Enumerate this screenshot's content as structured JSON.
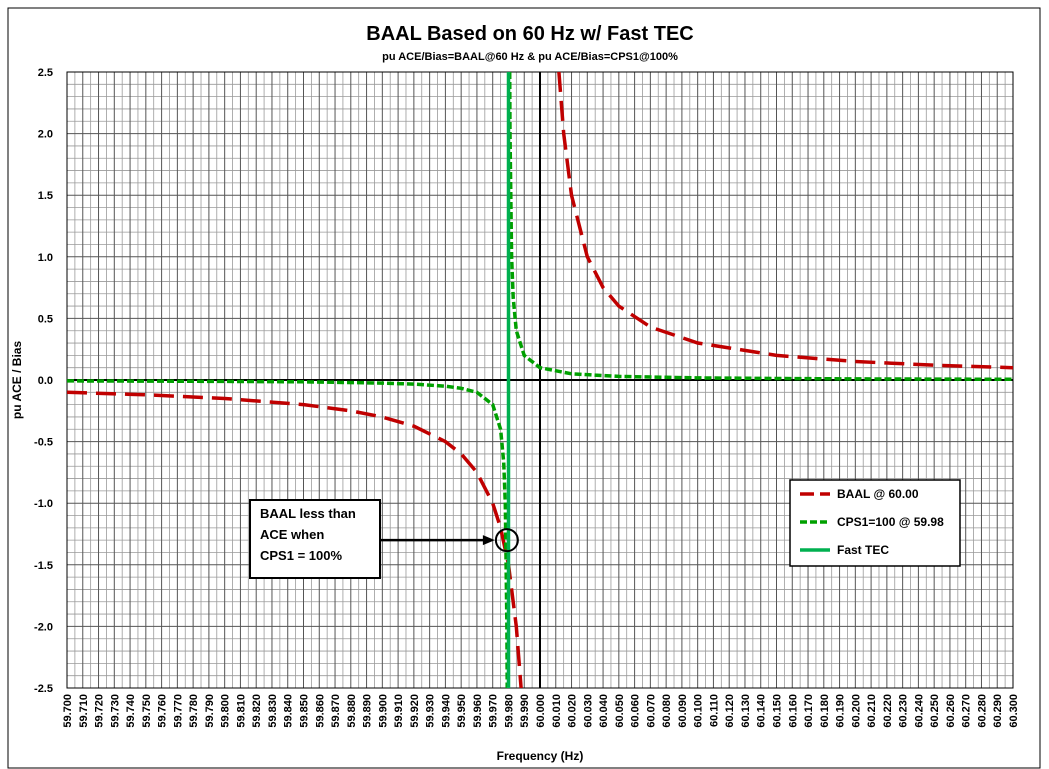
{
  "chart_data": {
    "type": "line",
    "title": "BAAL Based on 60 Hz w/ Fast TEC",
    "subtitle": "pu ACE/Bias=BAAL@60 Hz & pu ACE/Bias=CPS1@100%",
    "xlabel": "Frequency (Hz)",
    "ylabel": "pu ACE / Bias",
    "xlim": [
      59.7,
      60.3
    ],
    "ylim": [
      -2.5,
      2.5
    ],
    "xticks": [
      {
        "value": 59.7,
        "label": "59.700"
      },
      {
        "value": 59.71,
        "label": "59.710"
      },
      {
        "value": 59.72,
        "label": "59.720"
      },
      {
        "value": 59.73,
        "label": "59.730"
      },
      {
        "value": 59.74,
        "label": "59.740"
      },
      {
        "value": 59.75,
        "label": "59.750"
      },
      {
        "value": 59.76,
        "label": "59.760"
      },
      {
        "value": 59.77,
        "label": "59.770"
      },
      {
        "value": 59.78,
        "label": "59.780"
      },
      {
        "value": 59.79,
        "label": "59.790"
      },
      {
        "value": 59.8,
        "label": "59.800"
      },
      {
        "value": 59.81,
        "label": "59.810"
      },
      {
        "value": 59.82,
        "label": "59.820"
      },
      {
        "value": 59.83,
        "label": "59.830"
      },
      {
        "value": 59.84,
        "label": "59.840"
      },
      {
        "value": 59.85,
        "label": "59.850"
      },
      {
        "value": 59.86,
        "label": "59.860"
      },
      {
        "value": 59.87,
        "label": "59.870"
      },
      {
        "value": 59.88,
        "label": "59.880"
      },
      {
        "value": 59.89,
        "label": "59.890"
      },
      {
        "value": 59.9,
        "label": "59.900"
      },
      {
        "value": 59.91,
        "label": "59.910"
      },
      {
        "value": 59.92,
        "label": "59.920"
      },
      {
        "value": 59.93,
        "label": "59.930"
      },
      {
        "value": 59.94,
        "label": "59.940"
      },
      {
        "value": 59.95,
        "label": "59.950"
      },
      {
        "value": 59.96,
        "label": "59.960"
      },
      {
        "value": 59.97,
        "label": "59.970"
      },
      {
        "value": 59.98,
        "label": "59.980"
      },
      {
        "value": 59.99,
        "label": "59.990"
      },
      {
        "value": 60,
        "label": "60.000"
      },
      {
        "value": 60.01,
        "label": "60.010"
      },
      {
        "value": 60.02,
        "label": "60.020"
      },
      {
        "value": 60.03,
        "label": "60.030"
      },
      {
        "value": 60.04,
        "label": "60.040"
      },
      {
        "value": 60.05,
        "label": "60.050"
      },
      {
        "value": 60.06,
        "label": "60.060"
      },
      {
        "value": 60.07,
        "label": "60.070"
      },
      {
        "value": 60.08,
        "label": "60.080"
      },
      {
        "value": 60.09,
        "label": "60.090"
      },
      {
        "value": 60.1,
        "label": "60.100"
      },
      {
        "value": 60.11,
        "label": "60.110"
      },
      {
        "value": 60.12,
        "label": "60.120"
      },
      {
        "value": 60.13,
        "label": "60.130"
      },
      {
        "value": 60.14,
        "label": "60.140"
      },
      {
        "value": 60.15,
        "label": "60.150"
      },
      {
        "value": 60.16,
        "label": "60.160"
      },
      {
        "value": 60.17,
        "label": "60.170"
      },
      {
        "value": 60.18,
        "label": "60.180"
      },
      {
        "value": 60.19,
        "label": "60.190"
      },
      {
        "value": 60.2,
        "label": "60.200"
      },
      {
        "value": 60.21,
        "label": "60.210"
      },
      {
        "value": 60.22,
        "label": "60.220"
      },
      {
        "value": 60.23,
        "label": "60.230"
      },
      {
        "value": 60.24,
        "label": "60.240"
      },
      {
        "value": 60.25,
        "label": "60.250"
      },
      {
        "value": 60.26,
        "label": "60.260"
      },
      {
        "value": 60.27,
        "label": "60.270"
      },
      {
        "value": 60.28,
        "label": "60.280"
      },
      {
        "value": 60.29,
        "label": "60.290"
      },
      {
        "value": 60.3,
        "label": "60.300"
      }
    ],
    "yticks": [
      2.5,
      {
        "value": 2,
        "label": "2.0"
      },
      1.5,
      {
        "value": 1,
        "label": "1.0"
      },
      0.5,
      {
        "value": 0,
        "label": "0.0"
      },
      -0.5,
      {
        "value": -1,
        "label": "-1.0"
      },
      -1.5,
      {
        "value": -2,
        "label": "-2.0"
      },
      -2.5
    ],
    "grid": true,
    "minor_grid": true,
    "axis_cross": {
      "x": 60,
      "y": 0
    },
    "legend": "right",
    "series": [
      {
        "name": "BAAL @ 60.00",
        "color": "#c00000",
        "dash": "long",
        "x": [
          59.7,
          59.75,
          59.8,
          59.85,
          59.88,
          59.9,
          59.92,
          59.94,
          59.95,
          59.96,
          59.97,
          59.975,
          59.98,
          59.985,
          59.988,
          null,
          60.012,
          60.015,
          60.02,
          60.03,
          60.04,
          60.05,
          60.07,
          60.1,
          60.15,
          60.2,
          60.25,
          60.3
        ],
        "values": [
          -0.1,
          -0.12,
          -0.15,
          -0.2,
          -0.25,
          -0.3,
          -0.375,
          -0.5,
          -0.6,
          -0.75,
          -1.0,
          -1.2,
          -1.5,
          -2.0,
          -2.5,
          null,
          2.5,
          2.0,
          1.5,
          1.0,
          0.75,
          0.6,
          0.43,
          0.3,
          0.2,
          0.15,
          0.12,
          0.1
        ]
      },
      {
        "name": "CPS1=100 @ 59.98",
        "color": "#00a000",
        "dash": "short",
        "x": [
          59.7,
          59.75,
          59.8,
          59.85,
          59.9,
          59.92,
          59.94,
          59.95,
          59.96,
          59.97,
          59.975,
          59.977,
          59.978,
          59.979,
          59.9792,
          null,
          59.9808,
          59.981,
          59.982,
          59.983,
          59.985,
          59.99,
          60,
          60.02,
          60.05,
          60.1,
          60.15,
          60.2,
          60.25,
          60.3
        ],
        "values": [
          -0.007,
          -0.009,
          -0.011,
          -0.015,
          -0.025,
          -0.033,
          -0.05,
          -0.067,
          -0.1,
          -0.2,
          -0.4,
          -0.667,
          -1.0,
          -2.0,
          -2.5,
          null,
          2.5,
          2.0,
          1.0,
          0.667,
          0.4,
          0.2,
          0.1,
          0.05,
          0.029,
          0.017,
          0.012,
          0.009,
          0.007,
          0.006
        ]
      },
      {
        "name": "Fast TEC",
        "color": "#00b050",
        "dash": "solid",
        "x": [
          59.98,
          59.98
        ],
        "values": [
          -2.5,
          2.5
        ]
      }
    ],
    "annotation": {
      "lines": [
        "BAAL less than",
        "ACE when",
        "CPS1 = 100%"
      ],
      "x": 59.979,
      "y": -1.3
    }
  }
}
